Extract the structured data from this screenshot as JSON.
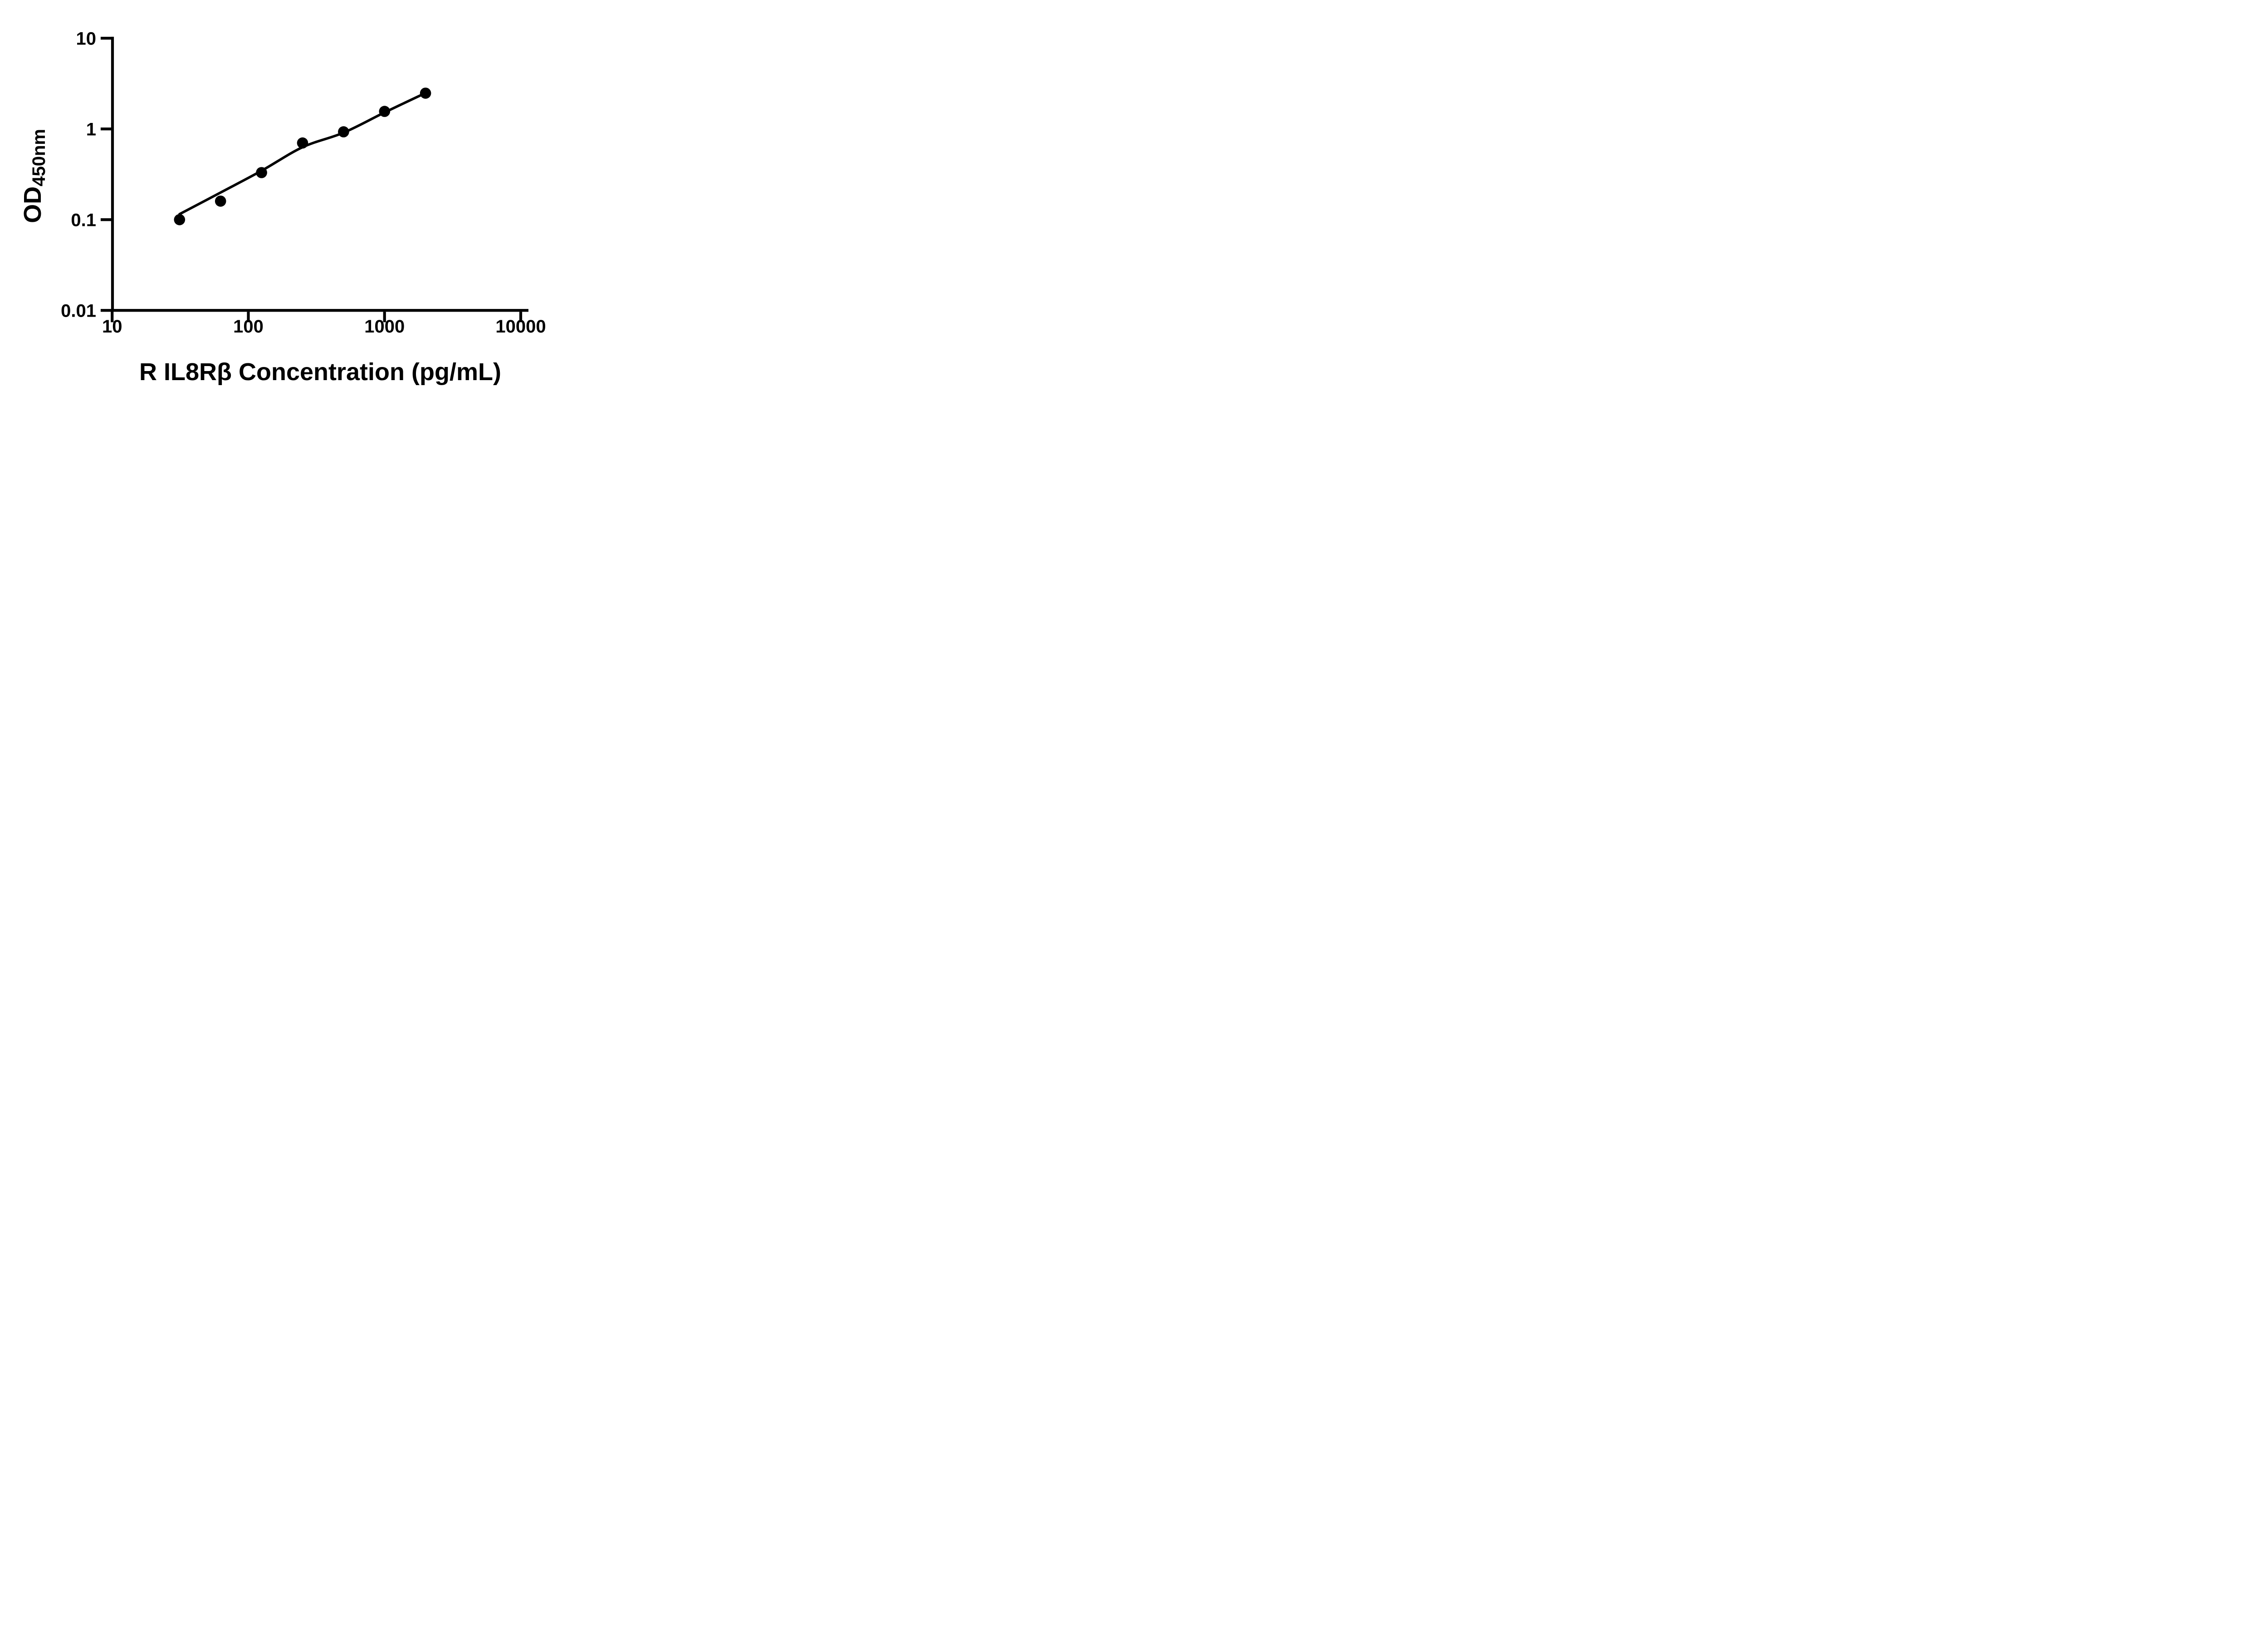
{
  "figure": {
    "background": "#ffffff",
    "ink": "#000000"
  },
  "chart_data": {
    "type": "scatter",
    "title": "",
    "xlabel": "R IL8Rβ Concentration (pg/mL)",
    "ylabel_main": "OD",
    "ylabel_sub": "450nm",
    "x_scale": "log",
    "y_scale": "log",
    "xlim": [
      10,
      10000
    ],
    "ylim": [
      0.01,
      10
    ],
    "grid": false,
    "legend": "none",
    "x_ticks": [
      {
        "value": 10,
        "label": "10"
      },
      {
        "value": 100,
        "label": "100"
      },
      {
        "value": 1000,
        "label": "1000"
      },
      {
        "value": 10000,
        "label": "10000"
      }
    ],
    "y_ticks": [
      {
        "value": 10,
        "label": "10"
      },
      {
        "value": 1,
        "label": "1"
      },
      {
        "value": 0.1,
        "label": "0.1"
      },
      {
        "value": 0.01,
        "label": "0.01"
      }
    ],
    "series": [
      {
        "name": "standards",
        "type": "scatter",
        "marker": "filled-circle",
        "color": "#000000",
        "x": [
          31.25,
          62.5,
          125,
          250,
          500,
          1000,
          2000
        ],
        "y": [
          0.1,
          0.16,
          0.33,
          0.7,
          0.93,
          1.56,
          2.48
        ]
      },
      {
        "name": "fit-curve",
        "type": "line",
        "color": "#000000",
        "x": [
          31.25,
          62.5,
          125,
          250,
          500,
          1000,
          2000
        ],
        "y": [
          0.115,
          0.199,
          0.346,
          0.629,
          0.909,
          1.52,
          2.49
        ]
      }
    ]
  }
}
